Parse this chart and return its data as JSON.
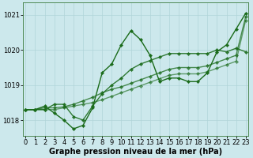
{
  "xlabel_label": "Graphe pression niveau de la mer (hPa)",
  "x_ticks": [
    0,
    1,
    2,
    3,
    4,
    5,
    6,
    7,
    8,
    9,
    10,
    11,
    12,
    13,
    14,
    15,
    16,
    17,
    18,
    19,
    20,
    21,
    22,
    23
  ],
  "y_ticks": [
    1018,
    1019,
    1020,
    1021
  ],
  "ylim": [
    1017.55,
    1021.35
  ],
  "xlim": [
    -0.3,
    23.3
  ],
  "bg_color": "#cce8ec",
  "grid_color": "#b0d4d8",
  "line_color": "#1a6b1a",
  "series": [
    [
      1018.3,
      1018.3,
      1018.4,
      1018.2,
      1018.0,
      1017.75,
      1017.85,
      1018.35,
      1019.35,
      1019.6,
      1020.15,
      1020.55,
      1020.3,
      1019.85,
      1019.1,
      1019.2,
      1019.2,
      1019.1,
      1019.1,
      1019.35,
      1019.95,
      1020.15,
      1020.6,
      1021.05
    ],
    [
      1018.3,
      1018.3,
      1018.3,
      1018.45,
      1018.45,
      1018.1,
      1018.0,
      1018.4,
      1018.75,
      1019.0,
      1019.2,
      1019.45,
      1019.6,
      1019.7,
      1019.8,
      1019.9,
      1019.9,
      1019.9,
      1019.9,
      1019.9,
      1020.0,
      1019.95,
      1020.05,
      1019.95
    ],
    [
      1018.3,
      1018.3,
      1018.35,
      1018.35,
      1018.38,
      1018.45,
      1018.55,
      1018.65,
      1018.78,
      1018.88,
      1018.95,
      1019.05,
      1019.15,
      1019.25,
      1019.35,
      1019.45,
      1019.5,
      1019.5,
      1019.5,
      1019.55,
      1019.65,
      1019.75,
      1019.85,
      1020.95
    ],
    [
      1018.3,
      1018.3,
      1018.3,
      1018.3,
      1018.35,
      1018.4,
      1018.45,
      1018.5,
      1018.58,
      1018.68,
      1018.78,
      1018.88,
      1018.98,
      1019.08,
      1019.18,
      1019.28,
      1019.32,
      1019.32,
      1019.32,
      1019.38,
      1019.48,
      1019.58,
      1019.68,
      1020.85
    ]
  ],
  "marker": "D",
  "marker_size": 2.2,
  "line_width": 1.0,
  "font_size_ticks": 6,
  "font_size_xlabel": 7
}
